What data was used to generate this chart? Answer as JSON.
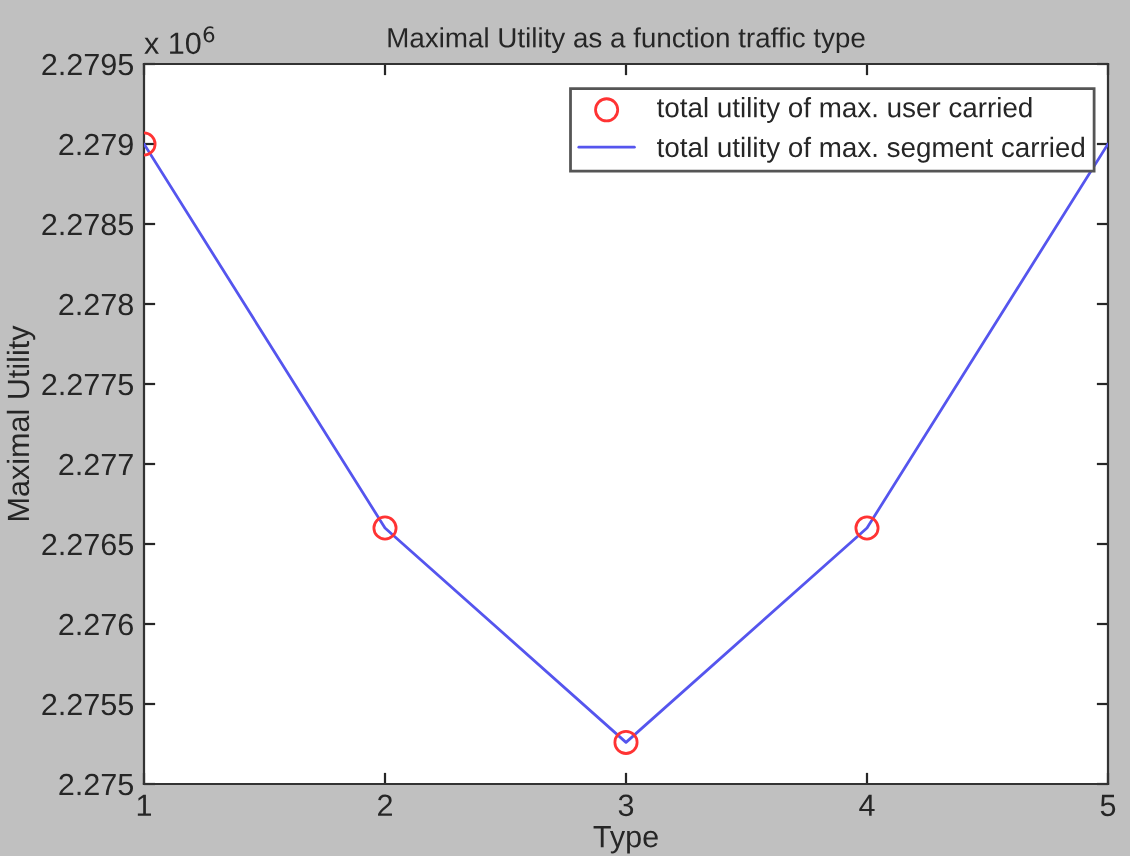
{
  "chart_data": {
    "type": "line",
    "title": "Maximal Utility as a function traffic type",
    "xlabel": "Type",
    "ylabel": "Maximal Utility",
    "annotations": [
      "x 10$^{6}$"
    ],
    "x": [
      1,
      2,
      3,
      4,
      5
    ],
    "series": [
      {
        "name": "total utility of max. user carried",
        "type": "scatter",
        "color": "#ff3333",
        "marker": "circle",
        "values": [
          2.279,
          2.2766,
          2.27526,
          2.2766,
          null
        ]
      },
      {
        "name": "total utility of max. segment carried",
        "color": "#5555ee",
        "marker": "none",
        "line_style": "solid",
        "values": [
          2.279,
          2.2766,
          2.27526,
          2.2766,
          2.279
        ]
      }
    ],
    "xlim": [
      1,
      5
    ],
    "xticks": [
      1,
      2,
      3,
      4,
      5
    ],
    "ylim": [
      2.275,
      2.2795
    ],
    "yticks": [
      {
        "value": 2.275,
        "label": "2.275"
      },
      {
        "value": 2.2755,
        "label": "2.2755"
      },
      {
        "value": 2.276,
        "label": "2.276"
      },
      {
        "value": 2.2765,
        "label": "2.2765"
      },
      {
        "value": 2.277,
        "label": "2.277"
      },
      {
        "value": 2.2775,
        "label": "2.2775"
      },
      {
        "value": 2.278,
        "label": "2.278"
      },
      {
        "value": 2.2785,
        "label": "2.2785"
      },
      {
        "value": 2.279,
        "label": "2.279"
      },
      {
        "value": 2.2795,
        "label": "2.2795"
      }
    ],
    "grid": false,
    "legend": "top right"
  }
}
